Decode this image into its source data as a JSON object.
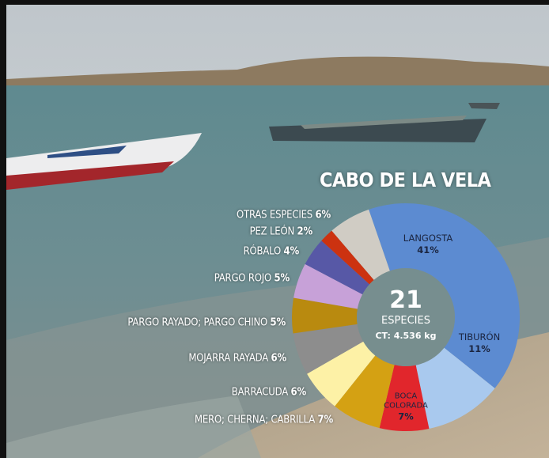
{
  "chart_data": {
    "type": "donut",
    "title": "CABO DE LA VELA",
    "categories": [
      "LANGOSTA",
      "TIBURÓN",
      "BOCA COLORADA",
      "MERO; CHERNA; CABRILLA",
      "BARRACUDA",
      "MOJARRA RAYADA",
      "PARGO RAYADO; PARGO CHINO",
      "PARGO ROJO",
      "RÓBALO",
      "PEZ LEÓN",
      "OTRAS ESPECIES"
    ],
    "values": [
      41,
      11,
      7,
      7,
      6,
      6,
      5,
      5,
      4,
      2,
      6
    ],
    "value_labels": [
      "41%",
      "11%",
      "7%",
      "7%",
      "6%",
      "6%",
      "5%",
      "5%",
      "4%",
      "2%",
      "6%"
    ],
    "colors": [
      "#5c8bd1",
      "#a9c9ee",
      "#e1262c",
      "#d4a113",
      "#fdf1a6",
      "#8d8d8d",
      "#b98a0f",
      "#c7a1d8",
      "#5758a6",
      "#cc3210",
      "#d0ccc4"
    ],
    "center_number": "21",
    "center_text": "ESPECIES",
    "center_subtext": "CT: 4.536 kg"
  }
}
